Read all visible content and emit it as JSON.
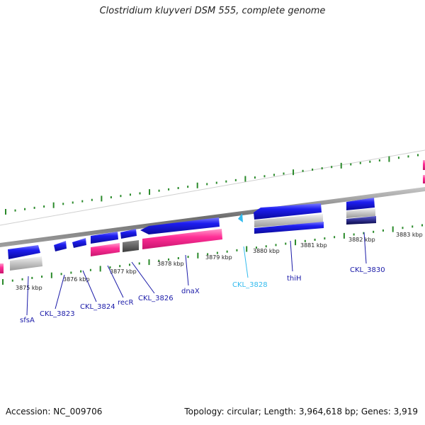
{
  "title": "Clostridium kluyveri DSM 555, complete genome",
  "footer": {
    "accession": "Accession: NC_009706",
    "summary": "Topology: circular; Length: 3,964,618 bp; Genes: 3,919"
  },
  "colors": {
    "cds": "#1212e0",
    "rna": "#ff3fa0",
    "pseudo": "#555555",
    "gray": "#c0c0c0",
    "highlight": "#33bbee",
    "tick": "#2a8a2a",
    "backbone": "#808080",
    "label": "#1a1aa8"
  },
  "scale": {
    "ticks": [
      {
        "label": "3875 kbp"
      },
      {
        "label": "3876 kbp"
      },
      {
        "label": "3877 kbp"
      },
      {
        "label": "3878 kbp"
      },
      {
        "label": "3879 kbp"
      },
      {
        "label": "3880 kbp"
      },
      {
        "label": "3881 kbp"
      },
      {
        "label": "3882 kbp"
      },
      {
        "label": "3883 kbp"
      }
    ]
  },
  "genes": [
    {
      "name": "sfsA",
      "highlight": false
    },
    {
      "name": "CKL_3823",
      "highlight": false
    },
    {
      "name": "CKL_3824",
      "highlight": false
    },
    {
      "name": "recR",
      "highlight": false
    },
    {
      "name": "CKL_3826",
      "highlight": false
    },
    {
      "name": "dnaX",
      "highlight": false
    },
    {
      "name": "CKL_3828",
      "highlight": true
    },
    {
      "name": "thiH",
      "highlight": false
    },
    {
      "name": "CKL_3830",
      "highlight": false
    }
  ]
}
